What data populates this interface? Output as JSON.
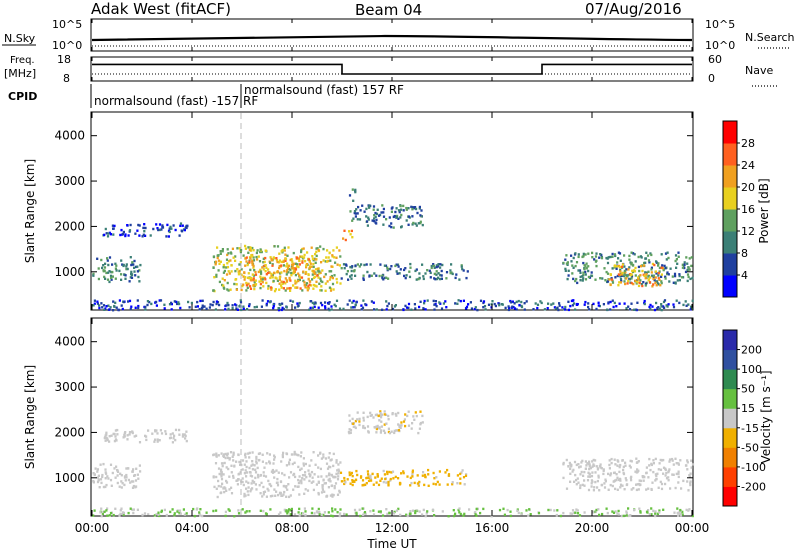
{
  "header": {
    "station": "Adak West (fitACF)",
    "beam": "Beam 04",
    "date": "07/Aug/2016"
  },
  "top_panels": {
    "nsky_label": "N.Sky",
    "nsky_ticks": [
      "10^5",
      "10^0"
    ],
    "nsearch_label": "N.Search",
    "nsearch_ticks": [
      "10^5",
      "10^0"
    ],
    "freq_label_line1": "Freq.",
    "freq_label_line2": "[MHz]",
    "freq_ticks": [
      "18",
      "8"
    ],
    "nave_label": "Nave",
    "nave_ticks": [
      "60",
      "0"
    ],
    "cpid_label": "CPID",
    "cpid_segments": [
      {
        "start_hour": 0,
        "end_hour": 6,
        "text": "normalsound (fast) -157 RF"
      },
      {
        "start_hour": 6,
        "end_hour": 24,
        "text": "normalsound (fast) 157 RF"
      }
    ],
    "freq_steps": [
      {
        "start_hour": 0,
        "end_hour": 10,
        "freq_mhz": 15.3
      },
      {
        "start_hour": 10,
        "end_hour": 18,
        "freq_mhz": 10.5
      },
      {
        "start_hour": 18,
        "end_hour": 24,
        "freq_mhz": 15.3
      }
    ]
  },
  "panels": {
    "power": {
      "ylabel": "Slant Range [km]",
      "cbar_label": "Power [dB]"
    },
    "velocity": {
      "ylabel": "Slant Range [km]",
      "cbar_label": "Velocity [m s⁻¹]"
    }
  },
  "xaxis": {
    "label": "Time UT",
    "tick_labels": [
      "00:00",
      "04:00",
      "08:00",
      "12:00",
      "16:00",
      "20:00",
      "00:00"
    ]
  },
  "colors": {
    "power_scale": [
      "#0000ff",
      "#1f3f9f",
      "#3b7f76",
      "#5fa05f",
      "#e8d020",
      "#f0a020",
      "#ff6020",
      "#ff0000"
    ],
    "velocity_scale": [
      "#2a2aaa",
      "#3050a0",
      "#2e8a50",
      "#66c040",
      "#c8c8c8",
      "#f0b000",
      "#f08000",
      "#ff4000",
      "#ff0000"
    ]
  },
  "chart_data": [
    {
      "type": "heatmap",
      "title": "Power",
      "x_unit": "hours UT",
      "xlim": [
        0,
        24
      ],
      "ylim": [
        180,
        4500
      ],
      "y_ticks": [
        1000,
        2000,
        3000,
        4000
      ],
      "colorbar": {
        "label": "Power [dB]",
        "range": [
          0,
          32
        ],
        "ticks": [
          4,
          8,
          12,
          16,
          20,
          24,
          28
        ]
      },
      "regions": [
        {
          "t0": 0.0,
          "t1": 1.9,
          "r0": 800,
          "r1": 1350,
          "level": 10
        },
        {
          "t0": 0.4,
          "t1": 3.8,
          "r0": 1800,
          "r1": 2100,
          "level": 5
        },
        {
          "t0": 4.8,
          "t1": 9.9,
          "r0": 600,
          "r1": 1600,
          "level": 17
        },
        {
          "t0": 6.0,
          "t1": 9.0,
          "r0": 650,
          "r1": 1350,
          "level": 22
        },
        {
          "t0": 9.9,
          "t1": 15.0,
          "r0": 850,
          "r1": 1200,
          "level": 9
        },
        {
          "t0": 10.2,
          "t1": 13.2,
          "r0": 2000,
          "r1": 2500,
          "level": 9
        },
        {
          "t0": 10.0,
          "t1": 10.4,
          "r0": 1700,
          "r1": 1950,
          "level": 22
        },
        {
          "t0": 10.2,
          "t1": 10.5,
          "r0": 2550,
          "r1": 2850,
          "level": 9
        },
        {
          "t0": 18.8,
          "t1": 24.0,
          "r0": 750,
          "r1": 1450,
          "level": 11
        },
        {
          "t0": 20.6,
          "t1": 22.8,
          "r0": 700,
          "r1": 1200,
          "level": 20
        },
        {
          "t0": 0.0,
          "t1": 24.0,
          "r0": 180,
          "r1": 400,
          "level": 6
        }
      ]
    },
    {
      "type": "heatmap",
      "title": "Velocity",
      "x_unit": "hours UT",
      "xlim": [
        0,
        24
      ],
      "ylim": [
        180,
        4500
      ],
      "y_ticks": [
        1000,
        2000,
        3000,
        4000
      ],
      "colorbar": {
        "label": "Velocity [m s⁻¹]",
        "range": [
          -250,
          250
        ],
        "ticks": [
          200,
          100,
          50,
          15,
          -15,
          -50,
          -100,
          -200
        ]
      },
      "regions": [
        {
          "t0": 0.0,
          "t1": 1.9,
          "r0": 800,
          "r1": 1350,
          "level": 0
        },
        {
          "t0": 0.4,
          "t1": 3.8,
          "r0": 1800,
          "r1": 2100,
          "level": 0
        },
        {
          "t0": 4.8,
          "t1": 9.9,
          "r0": 600,
          "r1": 1600,
          "level": 0
        },
        {
          "t0": 9.9,
          "t1": 15.0,
          "r0": 850,
          "r1": 1200,
          "level": -45
        },
        {
          "t0": 10.2,
          "t1": 13.2,
          "r0": 2000,
          "r1": 2500,
          "level": -10
        },
        {
          "t0": 18.8,
          "t1": 24.0,
          "r0": 750,
          "r1": 1450,
          "level": 0
        },
        {
          "t0": 0.0,
          "t1": 24.0,
          "r0": 180,
          "r1": 350,
          "level": 30
        }
      ]
    }
  ]
}
